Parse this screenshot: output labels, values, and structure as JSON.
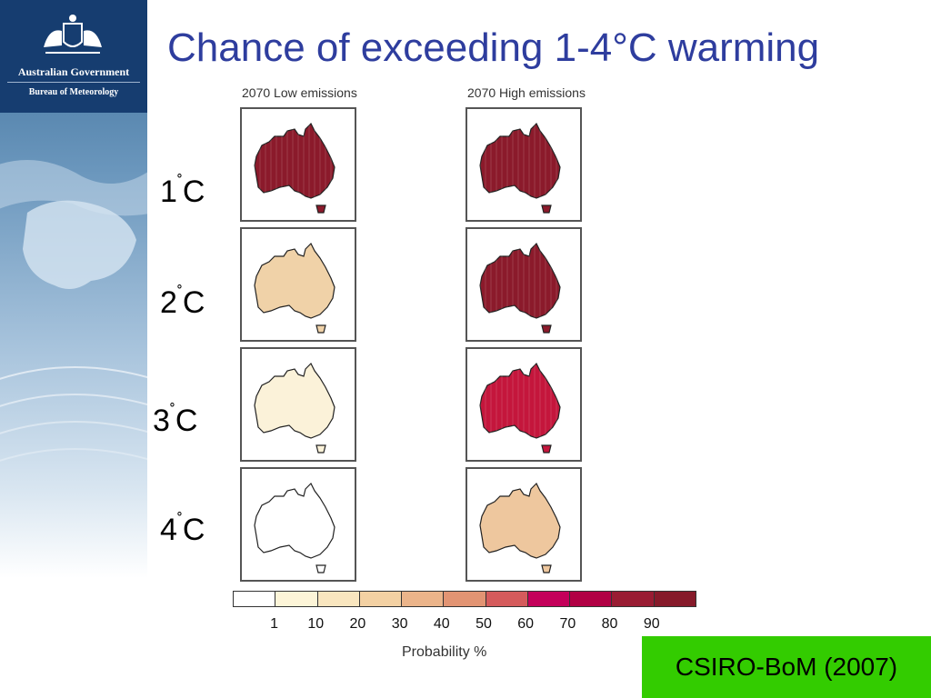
{
  "branding": {
    "line1": "Australian Government",
    "line2": "Bureau of Meteorology"
  },
  "title": "Chance of exceeding 1-4°C warming",
  "columns": [
    "2070 Low emissions",
    "2070 High emissions"
  ],
  "rows": [
    {
      "num": "1",
      "unit": "C",
      "deg": "˚",
      "low": {
        "fill": "#8b1a2b",
        "intensity": 90
      },
      "high": {
        "fill": "#8b1a2b",
        "intensity": 90
      }
    },
    {
      "num": "2",
      "unit": "C",
      "deg": "˚",
      "low": {
        "fill": "#f0d2a8",
        "intensity": 30
      },
      "high": {
        "fill": "#8b1a2b",
        "intensity": 90
      }
    },
    {
      "num": "3",
      "unit": "C",
      "deg": "˚",
      "low": {
        "fill": "#fbf2d9",
        "intensity": 10
      },
      "high": {
        "fill": "#c4163c",
        "intensity": 70
      }
    },
    {
      "num": "4",
      "unit": "C",
      "deg": "˚",
      "low": {
        "fill": "#ffffff",
        "intensity": 0
      },
      "high": {
        "fill": "#eec79e",
        "intensity": 30
      }
    }
  ],
  "legend": {
    "title": "Probability %",
    "colors": [
      "#ffffff",
      "#fdf5d8",
      "#f9e6bf",
      "#f3d1a3",
      "#ebb48a",
      "#e29473",
      "#d55b5c",
      "#c4005a",
      "#b10044",
      "#991c33",
      "#861a2a"
    ],
    "ticks": [
      "1",
      "10",
      "20",
      "30",
      "40",
      "50",
      "60",
      "70",
      "80",
      "90"
    ]
  },
  "credit": "CSIRO-BoM (2007)"
}
